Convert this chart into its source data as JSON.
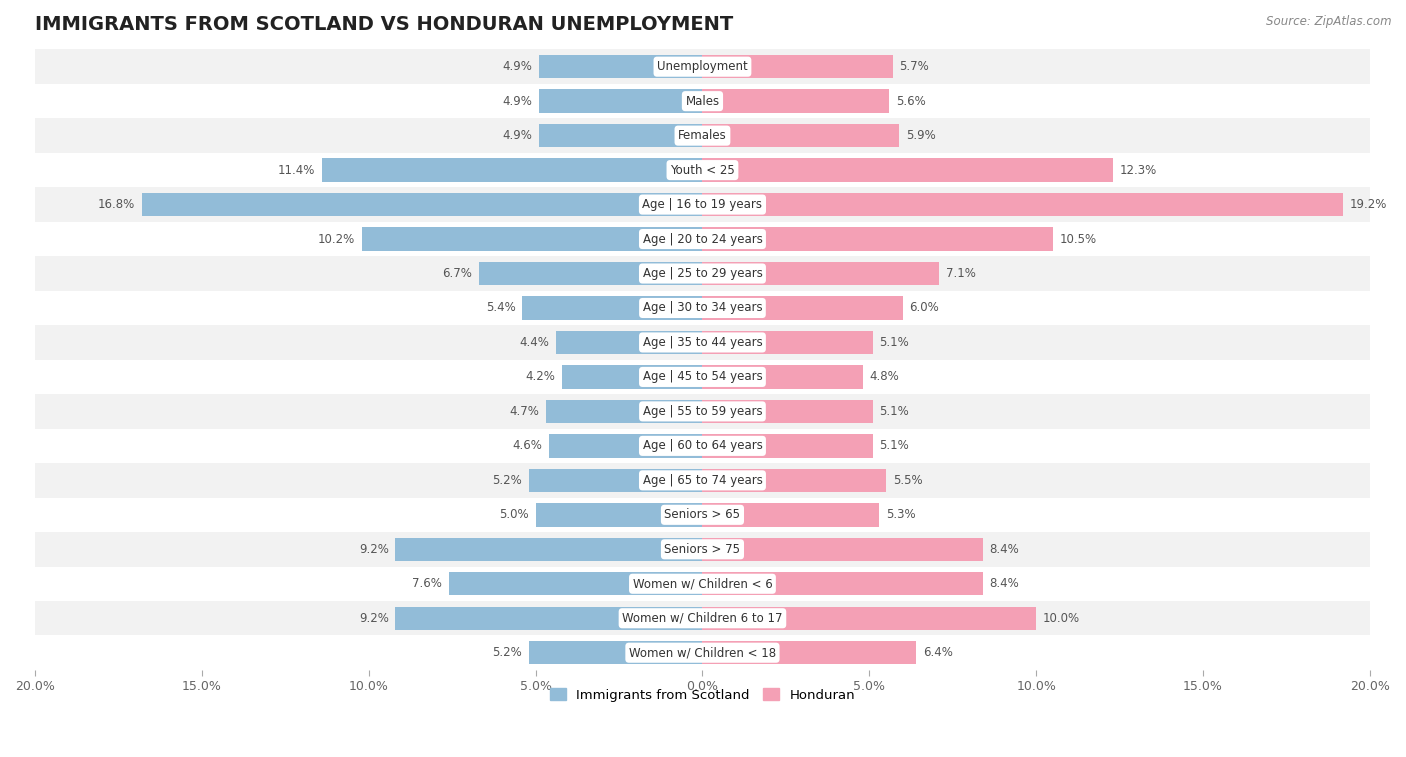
{
  "title": "IMMIGRANTS FROM SCOTLAND VS HONDURAN UNEMPLOYMENT",
  "source": "Source: ZipAtlas.com",
  "categories": [
    "Unemployment",
    "Males",
    "Females",
    "Youth < 25",
    "Age | 16 to 19 years",
    "Age | 20 to 24 years",
    "Age | 25 to 29 years",
    "Age | 30 to 34 years",
    "Age | 35 to 44 years",
    "Age | 45 to 54 years",
    "Age | 55 to 59 years",
    "Age | 60 to 64 years",
    "Age | 65 to 74 years",
    "Seniors > 65",
    "Seniors > 75",
    "Women w/ Children < 6",
    "Women w/ Children 6 to 17",
    "Women w/ Children < 18"
  ],
  "scotland_values": [
    4.9,
    4.9,
    4.9,
    11.4,
    16.8,
    10.2,
    6.7,
    5.4,
    4.4,
    4.2,
    4.7,
    4.6,
    5.2,
    5.0,
    9.2,
    7.6,
    9.2,
    5.2
  ],
  "honduran_values": [
    5.7,
    5.6,
    5.9,
    12.3,
    19.2,
    10.5,
    7.1,
    6.0,
    5.1,
    4.8,
    5.1,
    5.1,
    5.5,
    5.3,
    8.4,
    8.4,
    10.0,
    6.4
  ],
  "scotland_color": "#92bcd8",
  "honduran_color": "#f4a0b5",
  "background_color": "#ffffff",
  "row_bg_odd": "#f2f2f2",
  "row_bg_even": "#ffffff",
  "axis_limit": 20.0,
  "bar_height": 0.68,
  "legend_labels": [
    "Immigrants from Scotland",
    "Honduran"
  ],
  "title_fontsize": 14,
  "label_fontsize": 8.5,
  "value_fontsize": 8.5,
  "tick_fontsize": 9
}
